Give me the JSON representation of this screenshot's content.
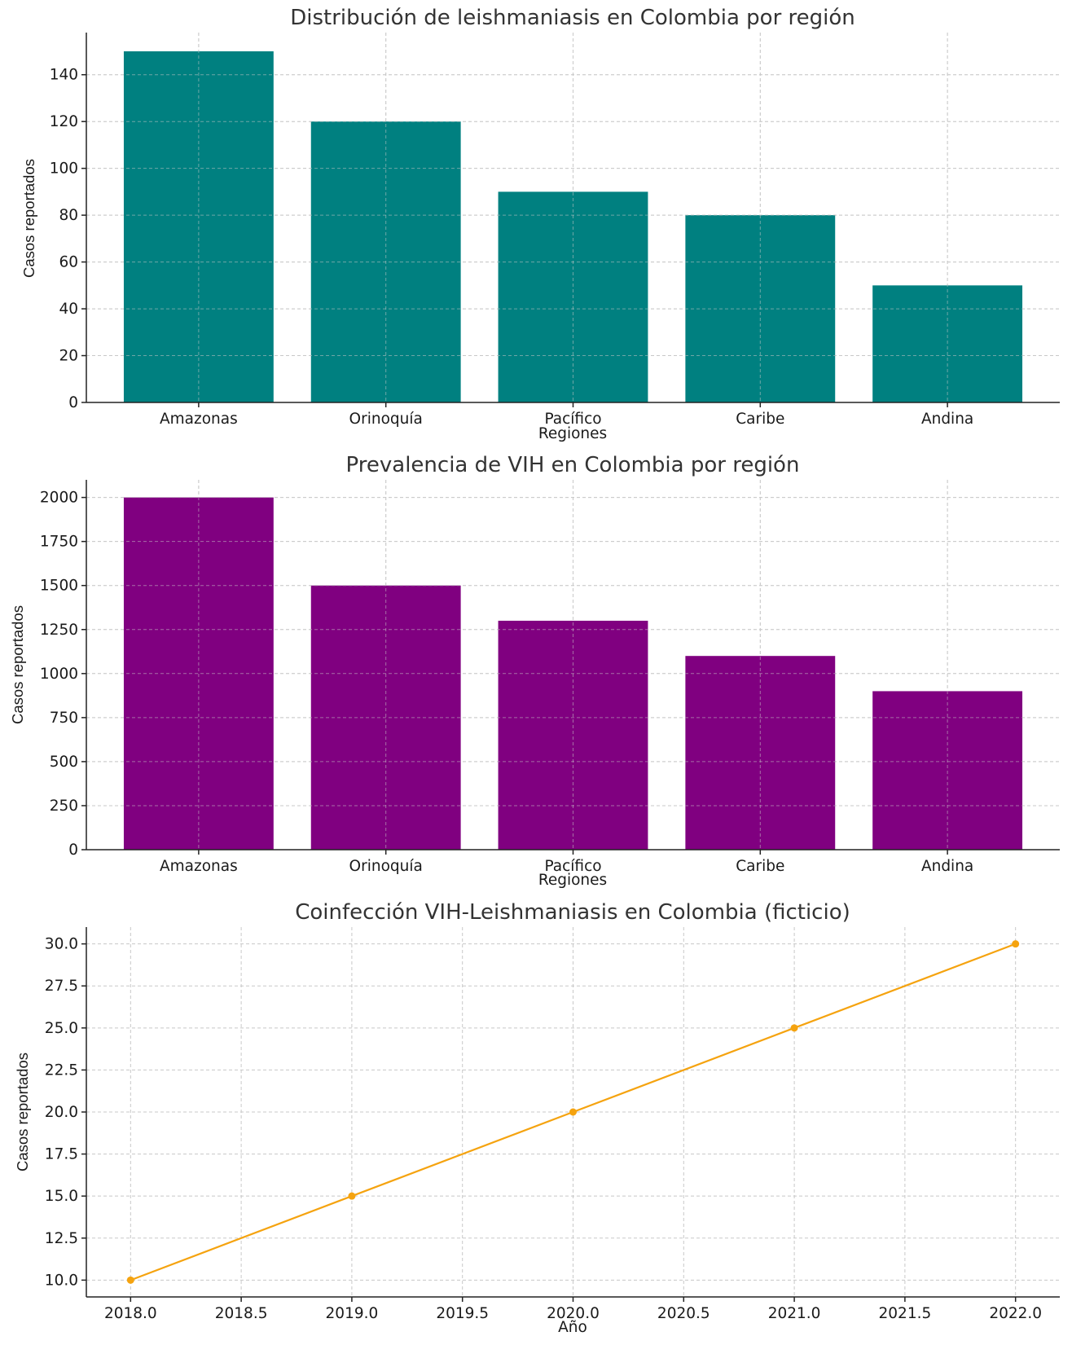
{
  "chart_data": [
    {
      "type": "bar",
      "title": "Distribución de leishmaniasis en Colombia por región",
      "xlabel": "Regiones",
      "ylabel": "Casos reportados",
      "categories": [
        "Amazonas",
        "Orinoquía",
        "Pacífico",
        "Caribe",
        "Andina"
      ],
      "values": [
        150,
        120,
        90,
        80,
        50
      ],
      "ylim": [
        0,
        158
      ],
      "yticks": [
        0,
        20,
        40,
        60,
        80,
        100,
        120,
        140
      ],
      "ytick_labels": [
        "0",
        "20",
        "40",
        "60",
        "80",
        "100",
        "120",
        "140"
      ],
      "color": "#008080",
      "grid": true
    },
    {
      "type": "bar",
      "title": "Prevalencia de VIH en Colombia por región",
      "xlabel": "Regiones",
      "ylabel": "Casos reportados",
      "categories": [
        "Amazonas",
        "Orinoquía",
        "Pacífico",
        "Caribe",
        "Andina"
      ],
      "values": [
        2000,
        1500,
        1300,
        1100,
        900
      ],
      "ylim": [
        0,
        2100
      ],
      "yticks": [
        0,
        250,
        500,
        750,
        1000,
        1250,
        1500,
        1750,
        2000
      ],
      "ytick_labels": [
        "0",
        "250",
        "500",
        "750",
        "1000",
        "1250",
        "1500",
        "1750",
        "2000"
      ],
      "color": "#800080",
      "grid": true
    },
    {
      "type": "line",
      "title": "Coinfección VIH-Leishmaniasis en Colombia (ficticio)",
      "xlabel": "Año",
      "ylabel": "Casos reportados",
      "x": [
        2018,
        2019,
        2020,
        2021,
        2022
      ],
      "values": [
        10,
        15,
        20,
        25,
        30
      ],
      "xlim": [
        2017.8,
        2022.2
      ],
      "ylim": [
        9,
        31
      ],
      "xticks": [
        2018,
        2018.5,
        2019,
        2019.5,
        2020,
        2020.5,
        2021,
        2021.5,
        2022
      ],
      "xtick_labels": [
        "2018.0",
        "2018.5",
        "2019.0",
        "2019.5",
        "2020.0",
        "2020.5",
        "2021.0",
        "2021.5",
        "2022.0"
      ],
      "yticks": [
        10,
        12.5,
        15,
        17.5,
        20,
        22.5,
        25,
        27.5,
        30
      ],
      "ytick_labels": [
        "10.0",
        "12.5",
        "15.0",
        "17.5",
        "20.0",
        "22.5",
        "25.0",
        "27.5",
        "30.0"
      ],
      "color": "#F5A30F",
      "marker": "circle",
      "grid": true
    }
  ]
}
